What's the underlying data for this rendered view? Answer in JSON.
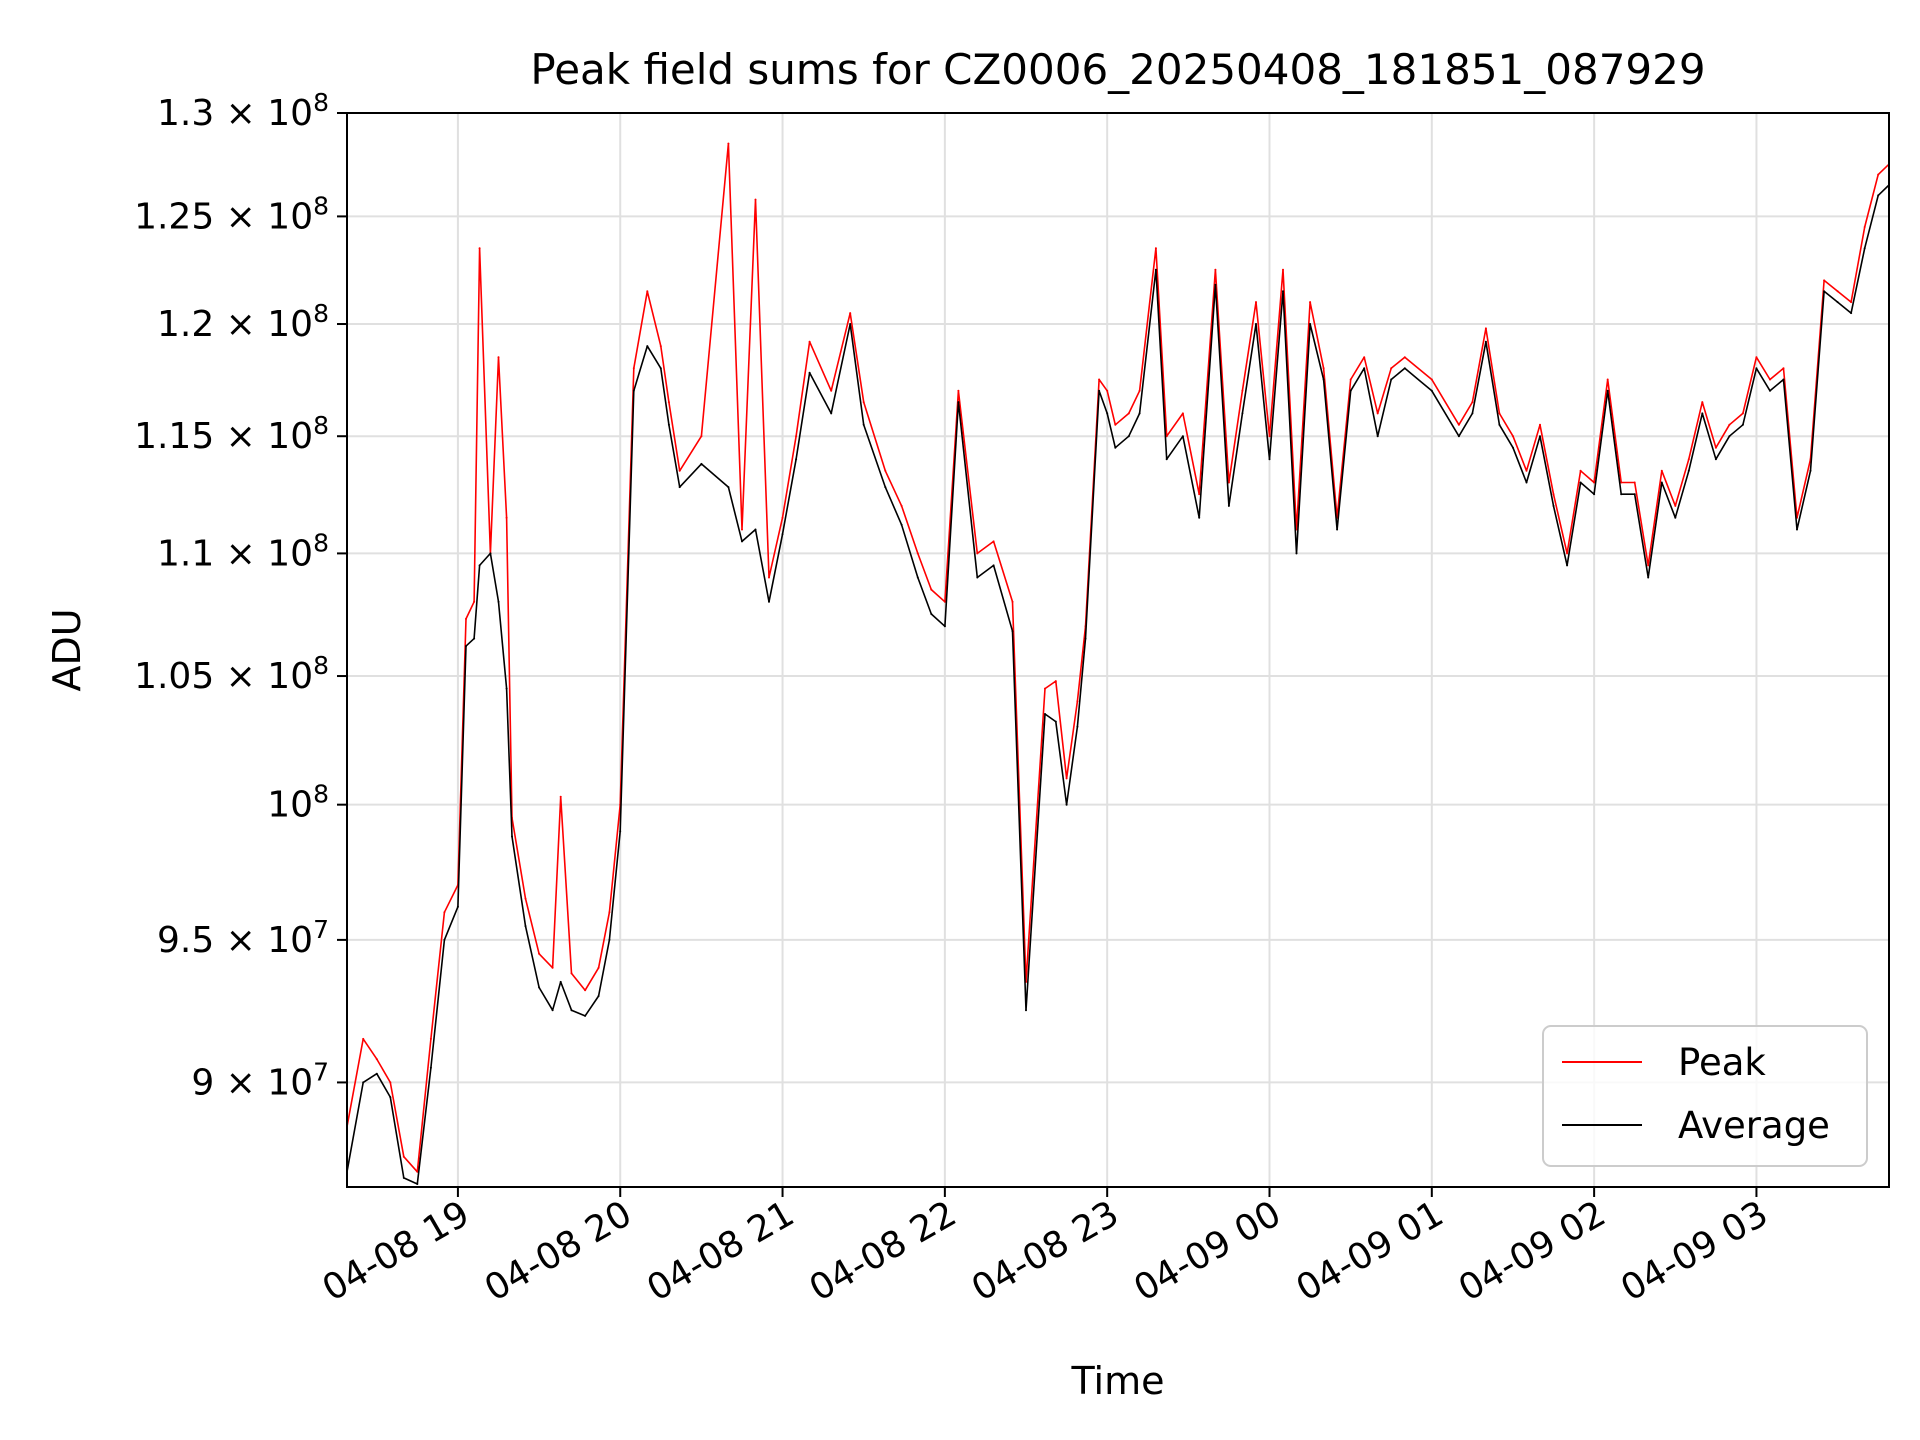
{
  "chart_data": {
    "type": "line",
    "title": "Peak field sums for CZ0006_20250408_181851_087929",
    "xlabel": "Time",
    "ylabel": "ADU",
    "y_scale": "log",
    "grid": true,
    "legend_placement": "lower-right",
    "xlim": [
      "2025-04-08 18:19",
      "2025-04-09 03:49"
    ],
    "ylim": [
      86500000,
      130000000
    ],
    "x_ticks": [
      "04-08 19",
      "04-08 20",
      "04-08 21",
      "04-08 22",
      "04-08 23",
      "04-09 00",
      "04-09 01",
      "04-09 02",
      "04-09 03"
    ],
    "x_tick_values": [
      "2025-04-08 19:00",
      "2025-04-08 20:00",
      "2025-04-08 21:00",
      "2025-04-08 22:00",
      "2025-04-08 23:00",
      "2025-04-09 00:00",
      "2025-04-09 01:00",
      "2025-04-09 02:00",
      "2025-04-09 03:00"
    ],
    "y_ticks": [
      {
        "value": 90000000,
        "mantissa": "9",
        "exp": "7"
      },
      {
        "value": 95000000,
        "mantissa": "9.5",
        "exp": "7"
      },
      {
        "value": 100000000,
        "mantissa": "",
        "exp": "8"
      },
      {
        "value": 105000000,
        "mantissa": "1.05",
        "exp": "8"
      },
      {
        "value": 110000000,
        "mantissa": "1.1",
        "exp": "8"
      },
      {
        "value": 115000000,
        "mantissa": "1.15",
        "exp": "8"
      },
      {
        "value": 120000000,
        "mantissa": "1.2",
        "exp": "8"
      },
      {
        "value": 125000000,
        "mantissa": "1.25",
        "exp": "8"
      },
      {
        "value": 130000000,
        "mantissa": "1.3",
        "exp": "8"
      }
    ],
    "series": [
      {
        "name": "Peak",
        "color": "#ff0000",
        "x": [
          "2025-04-08 18:19",
          "2025-04-08 18:25",
          "2025-04-08 18:30",
          "2025-04-08 18:35",
          "2025-04-08 18:40",
          "2025-04-08 18:45",
          "2025-04-08 18:50",
          "2025-04-08 18:55",
          "2025-04-08 19:00",
          "2025-04-08 19:03",
          "2025-04-08 19:06",
          "2025-04-08 19:08",
          "2025-04-08 19:12",
          "2025-04-08 19:15",
          "2025-04-08 19:18",
          "2025-04-08 19:20",
          "2025-04-08 19:25",
          "2025-04-08 19:30",
          "2025-04-08 19:35",
          "2025-04-08 19:38",
          "2025-04-08 19:42",
          "2025-04-08 19:47",
          "2025-04-08 19:52",
          "2025-04-08 19:56",
          "2025-04-08 20:00",
          "2025-04-08 20:05",
          "2025-04-08 20:10",
          "2025-04-08 20:15",
          "2025-04-08 20:18",
          "2025-04-08 20:22",
          "2025-04-08 20:30",
          "2025-04-08 20:40",
          "2025-04-08 20:45",
          "2025-04-08 20:50",
          "2025-04-08 20:55",
          "2025-04-08 21:00",
          "2025-04-08 21:05",
          "2025-04-08 21:10",
          "2025-04-08 21:18",
          "2025-04-08 21:25",
          "2025-04-08 21:30",
          "2025-04-08 21:38",
          "2025-04-08 21:44",
          "2025-04-08 21:50",
          "2025-04-08 21:55",
          "2025-04-08 22:00",
          "2025-04-08 22:05",
          "2025-04-08 22:12",
          "2025-04-08 22:18",
          "2025-04-08 22:25",
          "2025-04-08 22:30",
          "2025-04-08 22:37",
          "2025-04-08 22:41",
          "2025-04-08 22:45",
          "2025-04-08 22:49",
          "2025-04-08 22:52",
          "2025-04-08 22:57",
          "2025-04-08 23:00",
          "2025-04-08 23:03",
          "2025-04-08 23:08",
          "2025-04-08 23:12",
          "2025-04-08 23:18",
          "2025-04-08 23:22",
          "2025-04-08 23:28",
          "2025-04-08 23:34",
          "2025-04-08 23:40",
          "2025-04-08 23:45",
          "2025-04-08 23:50",
          "2025-04-08 23:55",
          "2025-04-09 00:00",
          "2025-04-09 00:05",
          "2025-04-09 00:10",
          "2025-04-09 00:15",
          "2025-04-09 00:20",
          "2025-04-09 00:25",
          "2025-04-09 00:30",
          "2025-04-09 00:35",
          "2025-04-09 00:40",
          "2025-04-09 00:45",
          "2025-04-09 00:50",
          "2025-04-09 01:00",
          "2025-04-09 01:10",
          "2025-04-09 01:15",
          "2025-04-09 01:20",
          "2025-04-09 01:25",
          "2025-04-09 01:30",
          "2025-04-09 01:35",
          "2025-04-09 01:40",
          "2025-04-09 01:45",
          "2025-04-09 01:50",
          "2025-04-09 01:55",
          "2025-04-09 02:00",
          "2025-04-09 02:05",
          "2025-04-09 02:10",
          "2025-04-09 02:15",
          "2025-04-09 02:20",
          "2025-04-09 02:25",
          "2025-04-09 02:30",
          "2025-04-09 02:35",
          "2025-04-09 02:40",
          "2025-04-09 02:45",
          "2025-04-09 02:50",
          "2025-04-09 02:55",
          "2025-04-09 03:00",
          "2025-04-09 03:05",
          "2025-04-09 03:10",
          "2025-04-09 03:15",
          "2025-04-09 03:20",
          "2025-04-09 03:25",
          "2025-04-09 03:30",
          "2025-04-09 03:35",
          "2025-04-09 03:40",
          "2025-04-09 03:45",
          "2025-04-09 03:49"
        ],
        "values": [
          88500000,
          91500000,
          90800000,
          90000000,
          87500000,
          87000000,
          91500000,
          96000000,
          97000000,
          107300000,
          108000000,
          123500000,
          110000000,
          118500000,
          111500000,
          99500000,
          96500000,
          94500000,
          94000000,
          100300000,
          93800000,
          93200000,
          94000000,
          96000000,
          100000000,
          118000000,
          121500000,
          119000000,
          116500000,
          113500000,
          115000000,
          128500000,
          111000000,
          125800000,
          109000000,
          111500000,
          115000000,
          119200000,
          117000000,
          120500000,
          116500000,
          113500000,
          112000000,
          110000000,
          108500000,
          108000000,
          117000000,
          110000000,
          110500000,
          108000000,
          93500000,
          104500000,
          104800000,
          101000000,
          104000000,
          107000000,
          117500000,
          117000000,
          115500000,
          116000000,
          117000000,
          123500000,
          115000000,
          116000000,
          112500000,
          122500000,
          113000000,
          117000000,
          121000000,
          115000000,
          122500000,
          111000000,
          121000000,
          118000000,
          111500000,
          117500000,
          118500000,
          116000000,
          118000000,
          118500000,
          117500000,
          115500000,
          116500000,
          119800000,
          116000000,
          115000000,
          113500000,
          115500000,
          112500000,
          110000000,
          113500000,
          113000000,
          117500000,
          113000000,
          113000000,
          109500000,
          113500000,
          112000000,
          114000000,
          116500000,
          114500000,
          115500000,
          116000000,
          118500000,
          117500000,
          118000000,
          111500000,
          114000000,
          122000000,
          121500000,
          121000000,
          124500000,
          127000000,
          127500000
        ]
      },
      {
        "name": "Average",
        "color": "#000000",
        "x": [
          "2025-04-08 18:19",
          "2025-04-08 18:25",
          "2025-04-08 18:30",
          "2025-04-08 18:35",
          "2025-04-08 18:40",
          "2025-04-08 18:45",
          "2025-04-08 18:50",
          "2025-04-08 18:55",
          "2025-04-08 19:00",
          "2025-04-08 19:03",
          "2025-04-08 19:06",
          "2025-04-08 19:08",
          "2025-04-08 19:12",
          "2025-04-08 19:15",
          "2025-04-08 19:18",
          "2025-04-08 19:20",
          "2025-04-08 19:25",
          "2025-04-08 19:30",
          "2025-04-08 19:35",
          "2025-04-08 19:38",
          "2025-04-08 19:42",
          "2025-04-08 19:47",
          "2025-04-08 19:52",
          "2025-04-08 19:56",
          "2025-04-08 20:00",
          "2025-04-08 20:05",
          "2025-04-08 20:10",
          "2025-04-08 20:15",
          "2025-04-08 20:18",
          "2025-04-08 20:22",
          "2025-04-08 20:30",
          "2025-04-08 20:40",
          "2025-04-08 20:45",
          "2025-04-08 20:50",
          "2025-04-08 20:55",
          "2025-04-08 21:00",
          "2025-04-08 21:05",
          "2025-04-08 21:10",
          "2025-04-08 21:18",
          "2025-04-08 21:25",
          "2025-04-08 21:30",
          "2025-04-08 21:38",
          "2025-04-08 21:44",
          "2025-04-08 21:50",
          "2025-04-08 21:55",
          "2025-04-08 22:00",
          "2025-04-08 22:05",
          "2025-04-08 22:12",
          "2025-04-08 22:18",
          "2025-04-08 22:25",
          "2025-04-08 22:30",
          "2025-04-08 22:37",
          "2025-04-08 22:41",
          "2025-04-08 22:45",
          "2025-04-08 22:49",
          "2025-04-08 22:52",
          "2025-04-08 22:57",
          "2025-04-08 23:00",
          "2025-04-08 23:03",
          "2025-04-08 23:08",
          "2025-04-08 23:12",
          "2025-04-08 23:18",
          "2025-04-08 23:22",
          "2025-04-08 23:28",
          "2025-04-08 23:34",
          "2025-04-08 23:40",
          "2025-04-08 23:45",
          "2025-04-08 23:50",
          "2025-04-08 23:55",
          "2025-04-09 00:00",
          "2025-04-09 00:05",
          "2025-04-09 00:10",
          "2025-04-09 00:15",
          "2025-04-09 00:20",
          "2025-04-09 00:25",
          "2025-04-09 00:30",
          "2025-04-09 00:35",
          "2025-04-09 00:40",
          "2025-04-09 00:45",
          "2025-04-09 00:50",
          "2025-04-09 01:00",
          "2025-04-09 01:10",
          "2025-04-09 01:15",
          "2025-04-09 01:20",
          "2025-04-09 01:25",
          "2025-04-09 01:30",
          "2025-04-09 01:35",
          "2025-04-09 01:40",
          "2025-04-09 01:45",
          "2025-04-09 01:50",
          "2025-04-09 01:55",
          "2025-04-09 02:00",
          "2025-04-09 02:05",
          "2025-04-09 02:10",
          "2025-04-09 02:15",
          "2025-04-09 02:20",
          "2025-04-09 02:25",
          "2025-04-09 02:30",
          "2025-04-09 02:35",
          "2025-04-09 02:40",
          "2025-04-09 02:45",
          "2025-04-09 02:50",
          "2025-04-09 02:55",
          "2025-04-09 03:00",
          "2025-04-09 03:05",
          "2025-04-09 03:10",
          "2025-04-09 03:15",
          "2025-04-09 03:20",
          "2025-04-09 03:25",
          "2025-04-09 03:30",
          "2025-04-09 03:35",
          "2025-04-09 03:40",
          "2025-04-09 03:45",
          "2025-04-09 03:49"
        ],
        "values": [
          87000000,
          90000000,
          90300000,
          89500000,
          86800000,
          86600000,
          90500000,
          95000000,
          96200000,
          106200000,
          106500000,
          109500000,
          110000000,
          108000000,
          104500000,
          98800000,
          95500000,
          93300000,
          92500000,
          93500000,
          92500000,
          92300000,
          93000000,
          95000000,
          99000000,
          117000000,
          119000000,
          118000000,
          115500000,
          112800000,
          113800000,
          112800000,
          110500000,
          111000000,
          108000000,
          110800000,
          114000000,
          117800000,
          116000000,
          120000000,
          115500000,
          112800000,
          111200000,
          109000000,
          107500000,
          107000000,
          116500000,
          109000000,
          109500000,
          106800000,
          92500000,
          103500000,
          103200000,
          100000000,
          103000000,
          106500000,
          117000000,
          116000000,
          114500000,
          115000000,
          116000000,
          122500000,
          114000000,
          115000000,
          111500000,
          121800000,
          112000000,
          116000000,
          120000000,
          114000000,
          121500000,
          110000000,
          120000000,
          117500000,
          111000000,
          117000000,
          118000000,
          115000000,
          117500000,
          118000000,
          117000000,
          115000000,
          116000000,
          119200000,
          115500000,
          114500000,
          113000000,
          115000000,
          112000000,
          109500000,
          113000000,
          112500000,
          117000000,
          112500000,
          112500000,
          109000000,
          113000000,
          111500000,
          113500000,
          116000000,
          114000000,
          115000000,
          115500000,
          118000000,
          117000000,
          117500000,
          111000000,
          113500000,
          121500000,
          121000000,
          120500000,
          123500000,
          126000000,
          126500000
        ]
      }
    ]
  }
}
